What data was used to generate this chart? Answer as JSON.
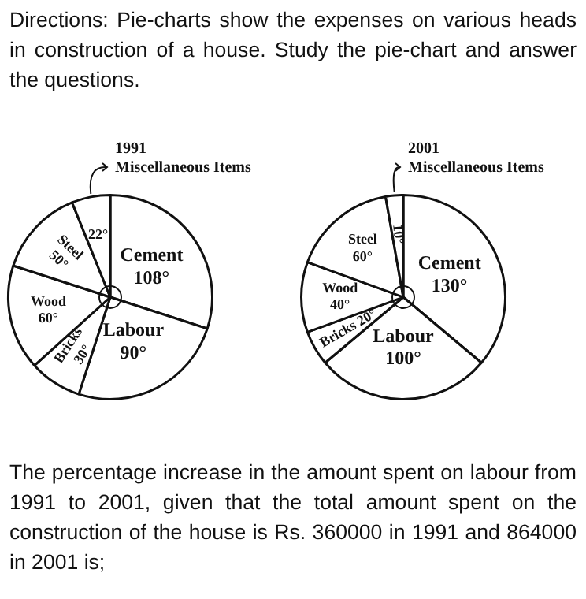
{
  "chart_data": [
    {
      "type": "pie",
      "title": "1991",
      "categories": [
        "Cement",
        "Labour",
        "Bricks",
        "Wood",
        "Steel",
        "Miscellaneous Items"
      ],
      "values": [
        108,
        90,
        30,
        60,
        50,
        22
      ],
      "value_labels": [
        "108°",
        "90°",
        "30°",
        "60°",
        "50°",
        "22°"
      ],
      "colors": [
        "#ffffff",
        "#ffffff",
        "#ffffff",
        "#ffffff",
        "#ffffff",
        "#ffffff"
      ],
      "annotations": [
        "Directions: Pie-charts show the expenses on various heads in construction of a house. Study the pie-chart and answer the questions."
      ]
    },
    {
      "type": "pie",
      "title": "2001",
      "categories": [
        "Cement",
        "Labour",
        "Bricks",
        "Wood",
        "Steel",
        "Miscellaneous Items"
      ],
      "values": [
        130,
        100,
        20,
        40,
        60,
        10
      ],
      "value_labels": [
        "130°",
        "100°",
        "20°",
        "40°",
        "60°",
        "10°"
      ],
      "colors": [
        "#ffffff",
        "#ffffff",
        "#ffffff",
        "#ffffff",
        "#ffffff",
        "#ffffff"
      ],
      "annotations": [
        "The percentage increase in the amount spent on labour from 1991 to 2001, given that the total amount spent on the construction of the house is Rs. 360000 in 1991 and 864000 in 2001 is;"
      ]
    }
  ]
}
